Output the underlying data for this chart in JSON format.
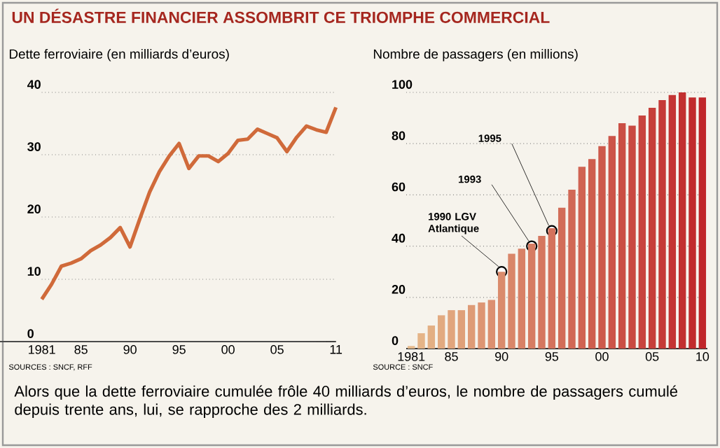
{
  "chart_data": [
    {
      "type": "line",
      "title": "UN DÉSASTRE FINANCIER ASSOMBRIT CE TRIOMPHE COMMERCIAL",
      "subtitle": "Dette ferroviaire (en milliards d’euros)",
      "x": [
        1981,
        1982,
        1983,
        1984,
        1985,
        1986,
        1987,
        1988,
        1989,
        1990,
        1991,
        1992,
        1993,
        1994,
        1995,
        1996,
        1997,
        1998,
        1999,
        2000,
        2001,
        2002,
        2003,
        2004,
        2005,
        2006,
        2007,
        2008,
        2009,
        2010,
        2011
      ],
      "series": [
        {
          "color": "#d06a3a",
          "values": [
            6.8,
            9.2,
            12.1,
            12.6,
            13.3,
            14.6,
            15.5,
            16.7,
            18.3,
            15.2,
            19.7,
            24.0,
            27.3,
            29.8,
            31.8,
            27.8,
            29.8,
            29.8,
            28.9,
            30.2,
            32.3,
            32.5,
            34.1,
            33.4,
            32.7,
            30.5,
            32.8,
            34.6,
            34.0,
            33.6,
            37.6
          ]
        }
      ],
      "xlim": [
        1981,
        2011
      ],
      "xticks": [
        1981,
        {
          "value": 1985,
          "label": "85"
        },
        {
          "value": 1990,
          "label": "90"
        },
        {
          "value": 1995,
          "label": "95"
        },
        {
          "value": 2000,
          "label": "00"
        },
        {
          "value": 2005,
          "label": "05"
        },
        {
          "value": 2011,
          "label": "11"
        }
      ],
      "ylim": [
        0,
        40
      ],
      "yticks": [
        0,
        10,
        20,
        30,
        40
      ],
      "grid": "y",
      "annotations": [
        "SOURCES : SNCF, RFF",
        "Alors que la dette ferroviaire cumulée frôle 40 milliards d’euros, le nombre de passagers cumulé depuis trente ans, lui, se rapproche des 2 milliards."
      ]
    },
    {
      "type": "bar",
      "subtitle": "Nombre de passagers (en millions)",
      "x": [
        1981,
        1982,
        1983,
        1984,
        1985,
        1986,
        1987,
        1988,
        1989,
        1990,
        1991,
        1992,
        1993,
        1994,
        1995,
        1996,
        1997,
        1998,
        1999,
        2000,
        2001,
        2002,
        2003,
        2004,
        2005,
        2006,
        2007,
        2008,
        2009,
        2010
      ],
      "values": [
        1,
        6,
        9,
        13,
        15,
        15,
        17,
        18,
        19,
        30,
        37,
        39,
        41,
        44,
        47,
        55,
        62,
        71,
        74,
        79,
        83,
        88,
        87,
        91,
        94,
        97,
        99,
        100,
        98,
        98
      ],
      "colors": [
        "#e6b98a",
        "#e5b487",
        "#e3af83",
        "#e2aa80",
        "#e1a57d",
        "#dfa079",
        "#de9b76",
        "#dd9573",
        "#dc9070",
        "#da8b6c",
        "#d98669",
        "#d88166",
        "#d67c62",
        "#d5775f",
        "#d4725c",
        "#d26d58",
        "#d16855",
        "#d06352",
        "#ce5e4e",
        "#cd594b",
        "#cc5448",
        "#ca4e44",
        "#c94941",
        "#c8443e",
        "#c63f3a",
        "#c53a37",
        "#c43534",
        "#c23030",
        "#c12b2d",
        "#c0262a"
      ],
      "xlim": [
        1980.5,
        2010.5
      ],
      "xticks": [
        1981,
        {
          "value": 1985,
          "label": "85"
        },
        {
          "value": 1990,
          "label": "90"
        },
        {
          "value": 1995,
          "label": "95"
        },
        {
          "value": 2000,
          "label": "00"
        },
        {
          "value": 2005,
          "label": "05"
        },
        {
          "value": 2010,
          "label": "10"
        }
      ],
      "ylim": [
        0,
        100
      ],
      "yticks": [
        0,
        20,
        40,
        60,
        80,
        100
      ],
      "grid": "y",
      "annotations": [
        "SOURCE : SNCF",
        {
          "text": "1990 LGV Atlantique",
          "x": 1990,
          "y": 30
        },
        {
          "text": "1993",
          "x": 1993,
          "y": 40
        },
        {
          "text": "1995",
          "x": 1995,
          "y": 46
        }
      ]
    }
  ]
}
